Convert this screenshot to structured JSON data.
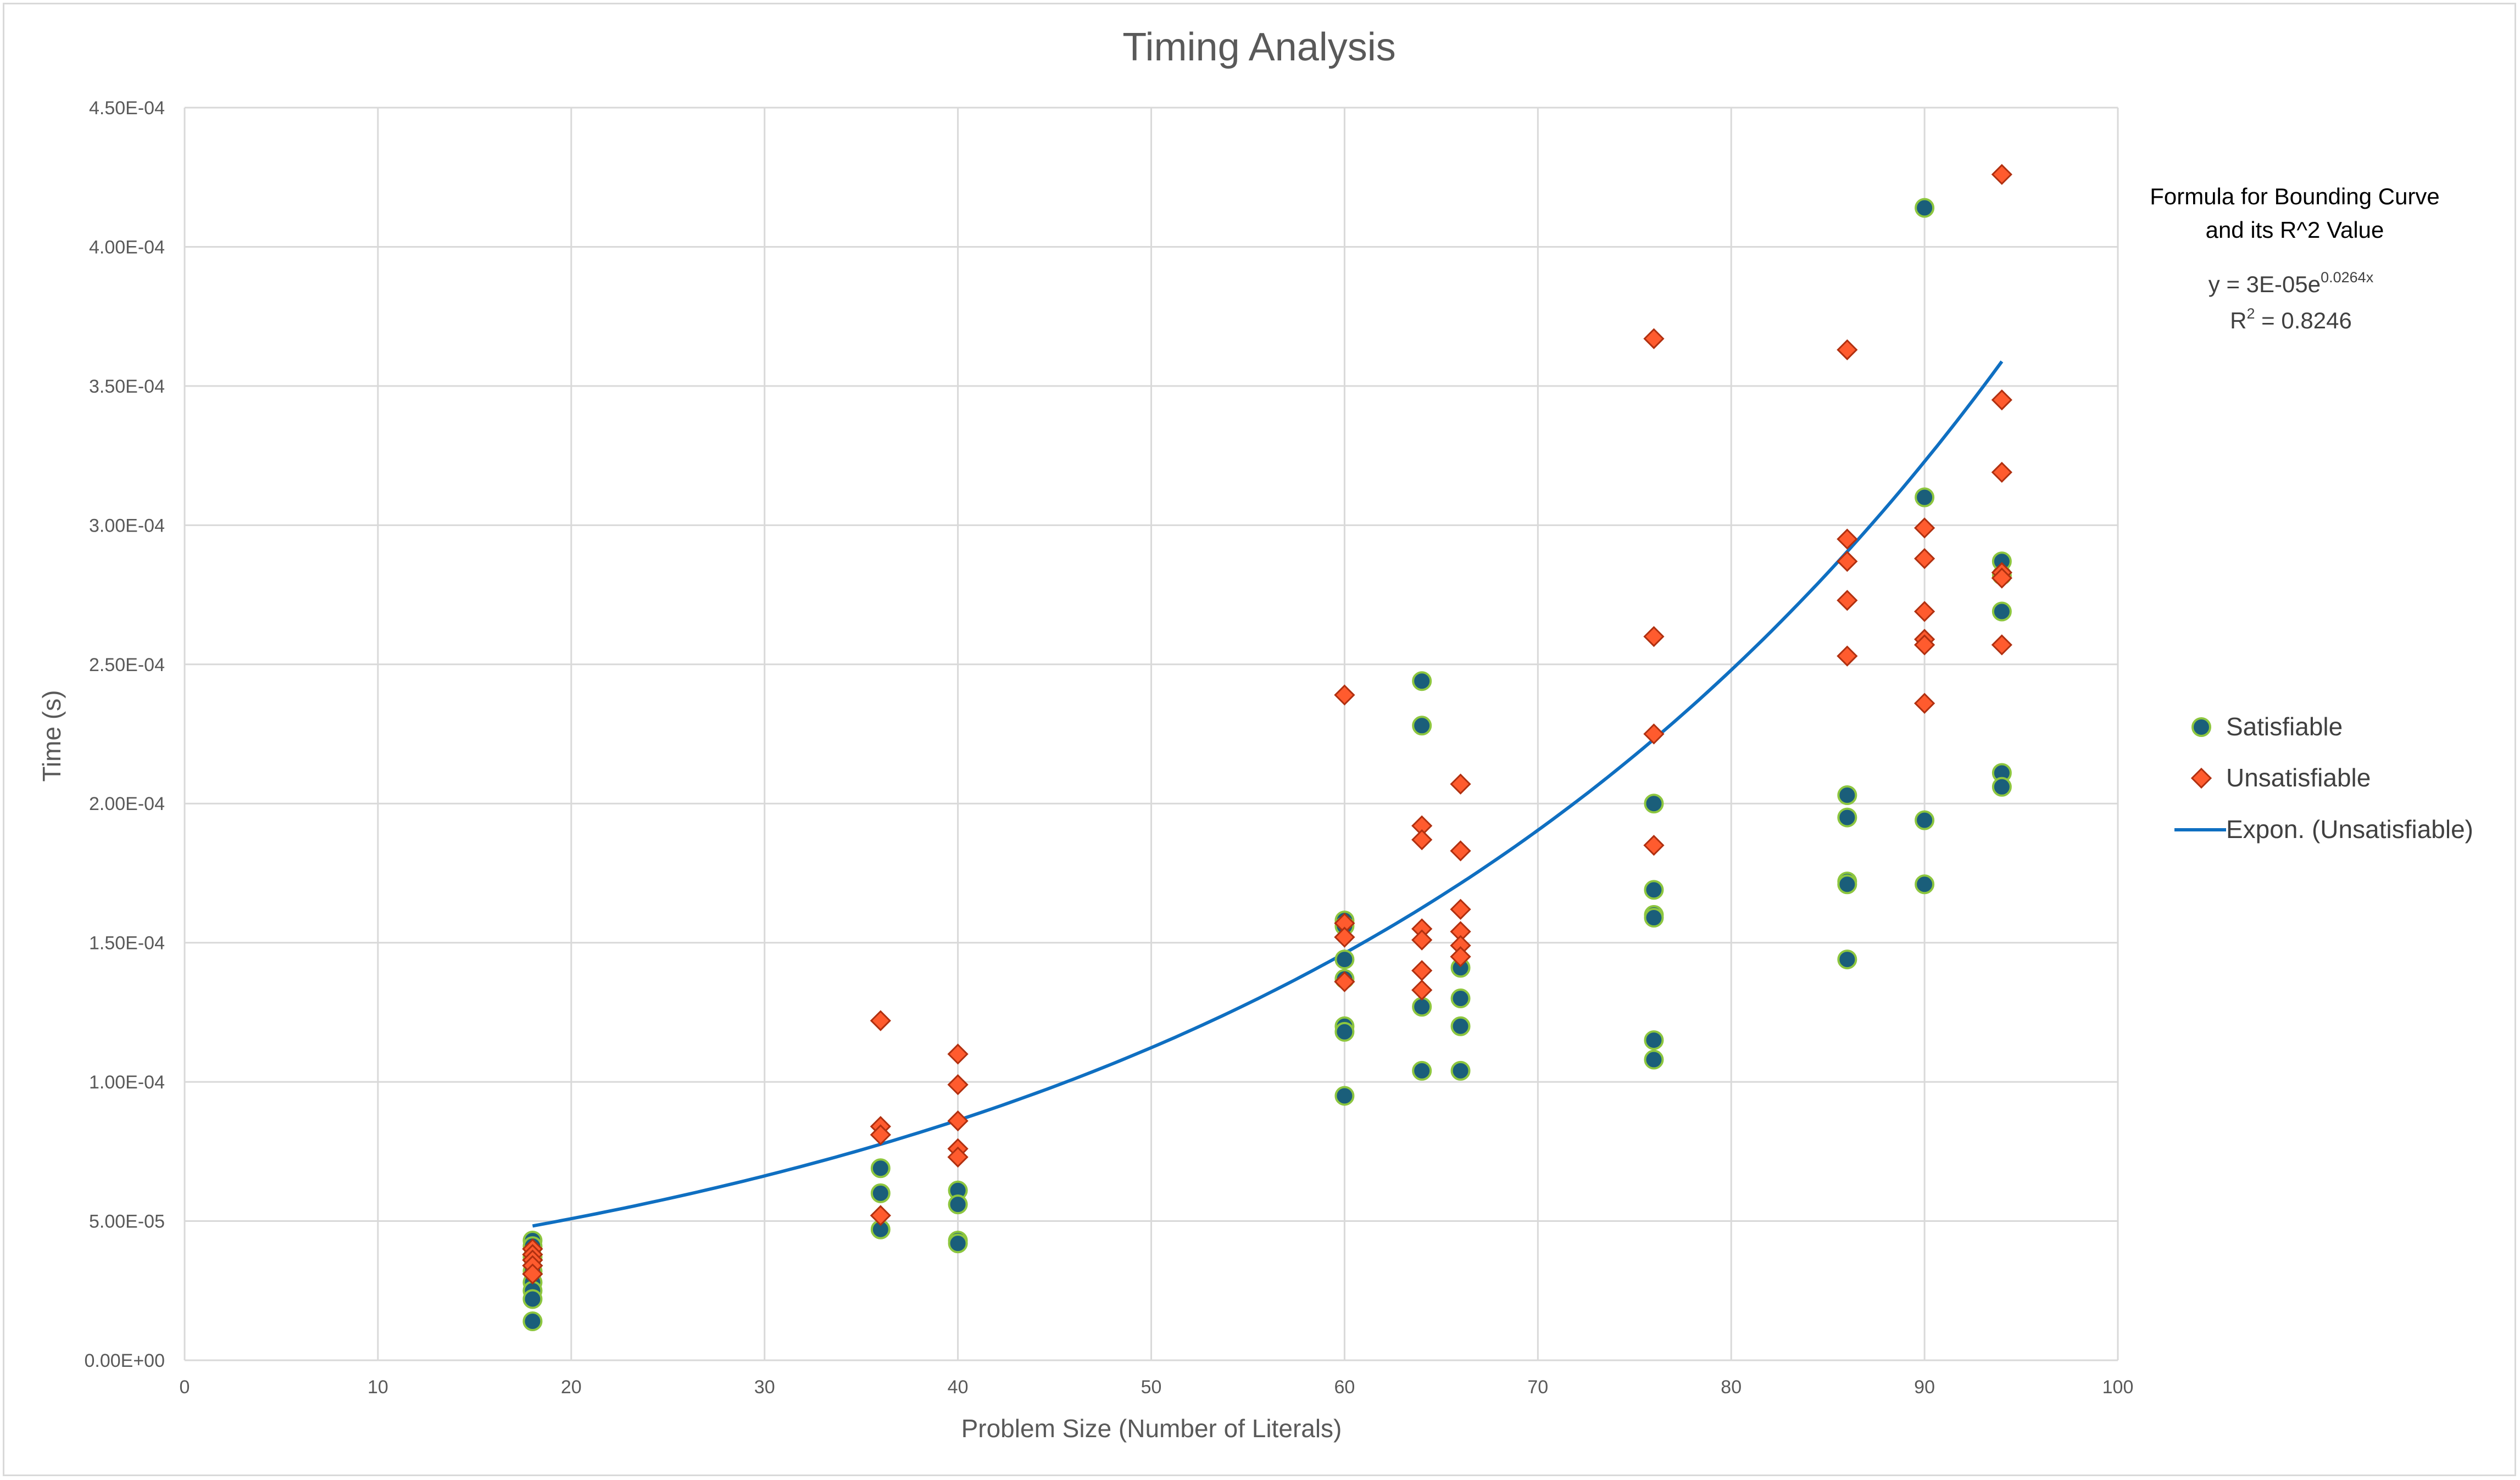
{
  "chart_data": {
    "type": "scatter",
    "title": "Timing Analysis",
    "xlabel": "Problem Size (Number of Literals)",
    "ylabel": "Time (s)",
    "xlim": [
      0,
      100
    ],
    "ylim": [
      0,
      0.00045
    ],
    "x_ticks": [
      0,
      10,
      20,
      30,
      40,
      50,
      60,
      70,
      80,
      90,
      100
    ],
    "x_tick_labels": [
      "0",
      "10",
      "20",
      "30",
      "40",
      "50",
      "60",
      "70",
      "80",
      "90",
      "100"
    ],
    "y_ticks": [
      0,
      5e-05,
      0.0001,
      0.00015,
      0.0002,
      0.00025,
      0.0003,
      0.00035,
      0.0004,
      0.00045
    ],
    "y_tick_labels": [
      "0.00E+00",
      "5.00E-05",
      "1.00E-04",
      "1.50E-04",
      "2.00E-04",
      "2.50E-04",
      "3.00E-04",
      "3.50E-04",
      "4.00E-04",
      "4.50E-04"
    ],
    "grid": true,
    "legend_position": "right",
    "colors": {
      "satisfiable_fill": "#1a5e7a",
      "satisfiable_edge": "#8dc63f",
      "unsatisfiable_fill": "#ff5b2e",
      "unsatisfiable_edge": "#b03010",
      "trendline": "#0f6fc1",
      "grid": "#d9d9d9",
      "text": "#595959"
    },
    "series": [
      {
        "name": "Satisfiable",
        "marker": "circle",
        "points": [
          [
            18,
            4.3e-05
          ],
          [
            18,
            4.1e-05
          ],
          [
            18,
            3.7e-05
          ],
          [
            18,
            3.2e-05
          ],
          [
            18,
            2.8e-05
          ],
          [
            18,
            2.5e-05
          ],
          [
            18,
            2.2e-05
          ],
          [
            18,
            1.4e-05
          ],
          [
            36,
            6.9e-05
          ],
          [
            36,
            6e-05
          ],
          [
            36,
            4.7e-05
          ],
          [
            40,
            6.1e-05
          ],
          [
            40,
            5.6e-05
          ],
          [
            40,
            4.3e-05
          ],
          [
            40,
            4.2e-05
          ],
          [
            60,
            0.000158
          ],
          [
            60,
            0.000156
          ],
          [
            60,
            0.000144
          ],
          [
            60,
            0.000137
          ],
          [
            60,
            0.00012
          ],
          [
            60,
            0.000118
          ],
          [
            60,
            9.5e-05
          ],
          [
            64,
            0.000244
          ],
          [
            64,
            0.000228
          ],
          [
            64,
            0.000127
          ],
          [
            64,
            0.000104
          ],
          [
            66,
            0.000141
          ],
          [
            66,
            0.00013
          ],
          [
            66,
            0.00012
          ],
          [
            66,
            0.000104
          ],
          [
            76,
            0.0002
          ],
          [
            76,
            0.000169
          ],
          [
            76,
            0.00016
          ],
          [
            76,
            0.000159
          ],
          [
            76,
            0.000115
          ],
          [
            76,
            0.000108
          ],
          [
            86,
            0.000203
          ],
          [
            86,
            0.000195
          ],
          [
            86,
            0.000172
          ],
          [
            86,
            0.000171
          ],
          [
            86,
            0.000144
          ],
          [
            90,
            0.000414
          ],
          [
            90,
            0.00031
          ],
          [
            90,
            0.000194
          ],
          [
            90,
            0.000171
          ],
          [
            94,
            0.000287
          ],
          [
            94,
            0.000282
          ],
          [
            94,
            0.000269
          ],
          [
            94,
            0.000211
          ],
          [
            94,
            0.000206
          ]
        ]
      },
      {
        "name": "Unsatisfiable",
        "marker": "diamond",
        "points": [
          [
            18,
            4e-05
          ],
          [
            18,
            3.8e-05
          ],
          [
            18,
            3.6e-05
          ],
          [
            18,
            3.4e-05
          ],
          [
            18,
            3.1e-05
          ],
          [
            36,
            0.000122
          ],
          [
            36,
            8.4e-05
          ],
          [
            36,
            8.1e-05
          ],
          [
            36,
            5.2e-05
          ],
          [
            40,
            0.00011
          ],
          [
            40,
            9.9e-05
          ],
          [
            40,
            8.6e-05
          ],
          [
            40,
            7.6e-05
          ],
          [
            40,
            7.3e-05
          ],
          [
            60,
            0.000239
          ],
          [
            60,
            0.000157
          ],
          [
            60,
            0.000152
          ],
          [
            60,
            0.000136
          ],
          [
            64,
            0.000192
          ],
          [
            64,
            0.000187
          ],
          [
            64,
            0.000155
          ],
          [
            64,
            0.000151
          ],
          [
            64,
            0.00014
          ],
          [
            64,
            0.000133
          ],
          [
            66,
            0.000207
          ],
          [
            66,
            0.000183
          ],
          [
            66,
            0.000162
          ],
          [
            66,
            0.000154
          ],
          [
            66,
            0.000149
          ],
          [
            66,
            0.000145
          ],
          [
            76,
            0.000367
          ],
          [
            76,
            0.00026
          ],
          [
            76,
            0.000225
          ],
          [
            76,
            0.000185
          ],
          [
            86,
            0.000363
          ],
          [
            86,
            0.000295
          ],
          [
            86,
            0.000287
          ],
          [
            86,
            0.000273
          ],
          [
            86,
            0.000253
          ],
          [
            90,
            0.000299
          ],
          [
            90,
            0.000288
          ],
          [
            90,
            0.000269
          ],
          [
            90,
            0.000259
          ],
          [
            90,
            0.000257
          ],
          [
            90,
            0.000236
          ],
          [
            94,
            0.000426
          ],
          [
            94,
            0.000345
          ],
          [
            94,
            0.000319
          ],
          [
            94,
            0.000283
          ],
          [
            94,
            0.000281
          ],
          [
            94,
            0.000257
          ]
        ]
      }
    ],
    "trendline": {
      "name": "Expon. (Unsatisfiable)",
      "type": "exponential",
      "a": 3e-05,
      "b": 0.0264,
      "x_range": [
        18,
        94
      ]
    },
    "annotation": {
      "heading_line1": "Formula for Bounding Curve",
      "heading_line2": "and its R^2 Value",
      "equation_prefix": "y = 3E-05e",
      "equation_exponent": "0.0264x",
      "r2_prefix": "R",
      "r2_superscript": "2",
      "r2_value": " = 0.8246"
    }
  }
}
